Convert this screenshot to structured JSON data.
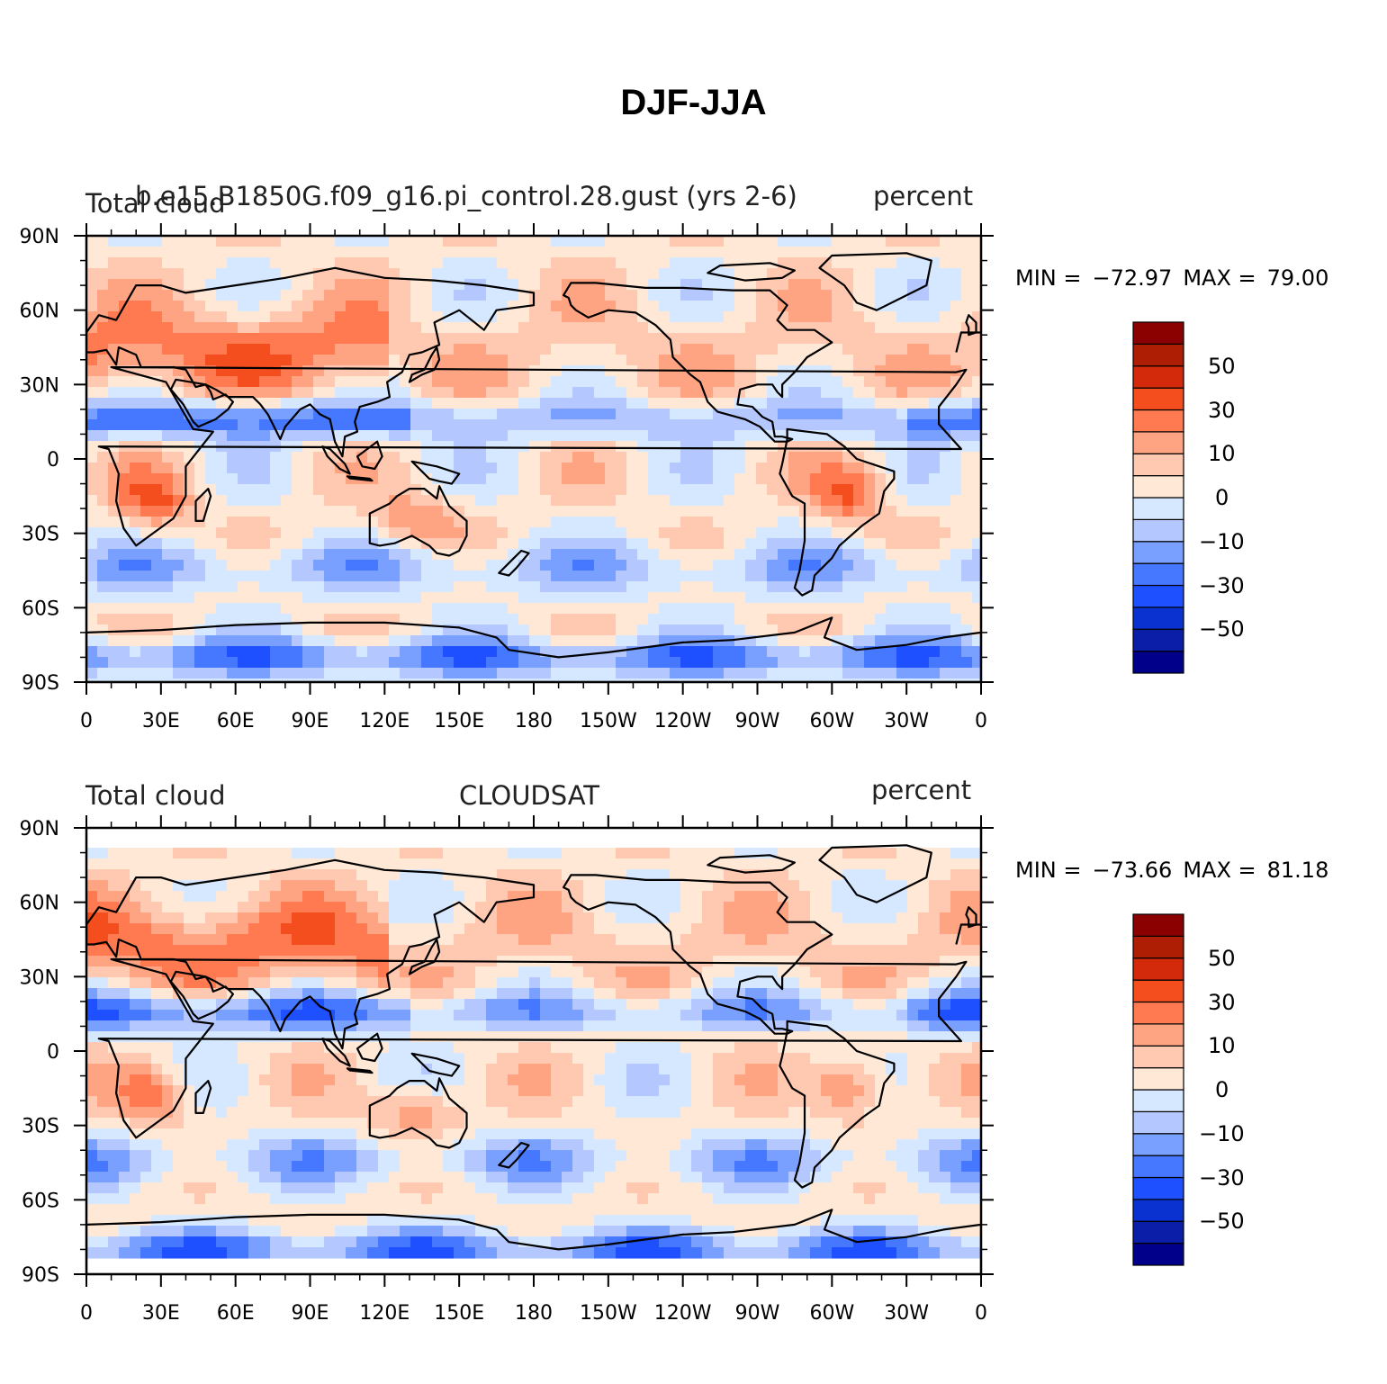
{
  "title": "DJF-JJA",
  "palette": [
    "#00008b",
    "#0a1ea8",
    "#0a32d0",
    "#1e50ff",
    "#4678ff",
    "#7aa0ff",
    "#b4c8ff",
    "#d6e8ff",
    "#ffe9d6",
    "#ffc8b0",
    "#ffa482",
    "#ff7a50",
    "#f44e1e",
    "#d22a0a",
    "#ae1e05",
    "#8b0000"
  ],
  "colorbar_labels": [
    "50",
    "30",
    "10",
    "0",
    "−10",
    "−30",
    "−50"
  ],
  "x_ticks": [
    "0",
    "30E",
    "60E",
    "90E",
    "120E",
    "150E",
    "180",
    "150W",
    "120W",
    "90W",
    "60W",
    "30W",
    "0"
  ],
  "y_ticks": [
    "90N",
    "60N",
    "30N",
    "0",
    "30S",
    "60S",
    "90S"
  ],
  "panels": [
    {
      "left_label": "Total cloud",
      "center_label": "b.e15.B1850G.f09_g16.pi_control.28.gust (yrs 2-6)",
      "right_label": "percent",
      "min_label": "MIN =",
      "min_value": "−72.97",
      "max_label": "MAX =",
      "max_value": "79.00",
      "lat_coverage": [
        -90,
        90
      ]
    },
    {
      "left_label": "Total cloud",
      "center_label": "CLOUDSAT",
      "right_label": "percent",
      "min_label": "MIN =",
      "min_value": "−73.66",
      "max_label": "MAX =",
      "max_value": "81.18",
      "lat_coverage": [
        -82,
        82
      ]
    }
  ]
}
